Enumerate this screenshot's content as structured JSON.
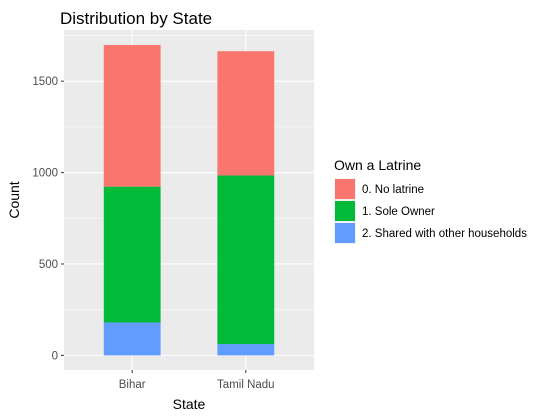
{
  "chart_data": {
    "type": "bar",
    "stacked": true,
    "title": "Distribution by State",
    "xlabel": "State",
    "ylabel": "Count",
    "categories": [
      "Bihar",
      "Tamil Nadu"
    ],
    "yticks": [
      0,
      500,
      1000,
      1500
    ],
    "ylim": [
      -80,
      1780
    ],
    "grid": true,
    "legend": {
      "title": "Own a Latrine",
      "placement": "right"
    },
    "series": [
      {
        "name": "0. No latrine",
        "color": "#F8766D",
        "values": [
          775,
          680
        ]
      },
      {
        "name": "1. Sole Owner",
        "color": "#00BA38",
        "values": [
          743,
          922
        ]
      },
      {
        "name": "2. Shared with other households",
        "color": "#619CFF",
        "values": [
          180,
          62
        ]
      }
    ]
  }
}
